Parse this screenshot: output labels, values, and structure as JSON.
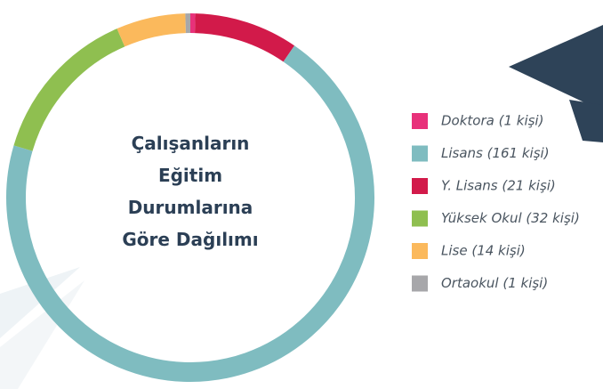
{
  "chart_data": {
    "type": "donut",
    "title_lines": [
      "Çalışanların",
      "Eğitim",
      "Durumlarına",
      "Göre Dağılımı"
    ],
    "categories": [
      "Doktora",
      "Y. Lisans",
      "Lisans",
      "Yüksek Okul",
      "Lise",
      "Ortaokul"
    ],
    "values": [
      1,
      21,
      161,
      32,
      14,
      1
    ],
    "colors": [
      "#e8317a",
      "#d21a4a",
      "#7fbcc0",
      "#8fbf50",
      "#fbb95c",
      "#a7a7aa"
    ],
    "legend": [
      {
        "label": "Doktora (1 kişi)",
        "color": "#e8317a"
      },
      {
        "label": "Lisans (161 kişi)",
        "color": "#7fbcc0"
      },
      {
        "label": "Y. Lisans (21 kişi)",
        "color": "#d21a4a"
      },
      {
        "label": "Yüksek Okul (32 kişi)",
        "color": "#8fbf50"
      },
      {
        "label": "Lise (14 kişi)",
        "color": "#fbb95c"
      },
      {
        "label": "Ortaokul (1 kişi)",
        "color": "#a7a7aa"
      }
    ]
  }
}
